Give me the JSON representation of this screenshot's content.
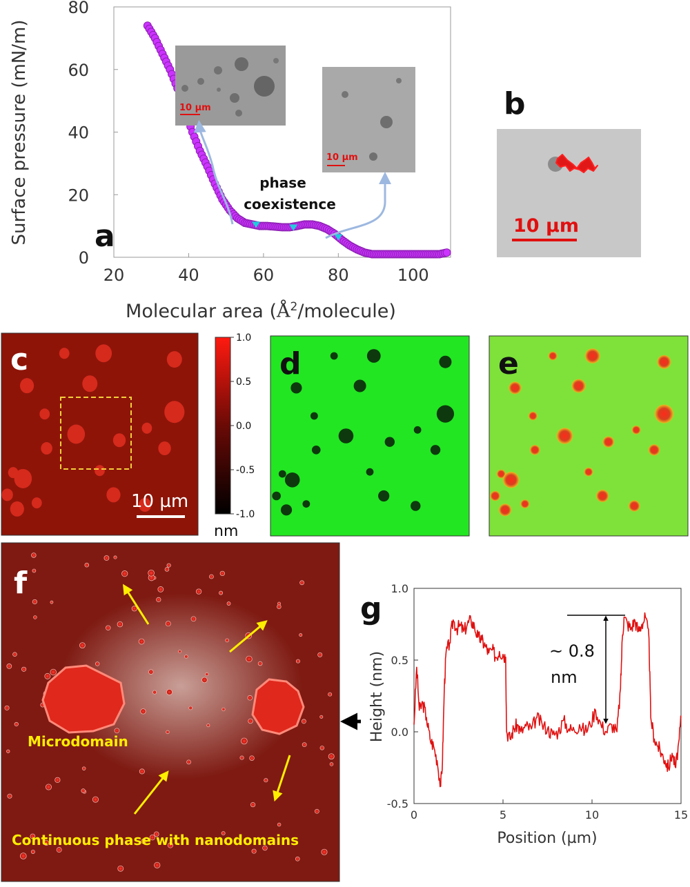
{
  "colors": {
    "isotherm_marker": "#cc33ff",
    "isotherm_edge": "#8a1fb0",
    "transition_marker": "#22ccdd",
    "arrow_blue": "#9db8e0",
    "afm_red": "#c81a10",
    "green": "#22e622",
    "label_yellow": "#ffee00",
    "profile_red": "#e01010"
  },
  "panels": {
    "a": {
      "letter": "a",
      "annotation_line1": "phase",
      "annotation_line2": "coexistence",
      "inset1_scale": "10 µm",
      "inset2_scale": "10 µm"
    },
    "b": {
      "letter": "b",
      "scale": "10 µm"
    },
    "c": {
      "letter": "c",
      "scale": "10 µm"
    },
    "colorbar": {
      "ticks": [
        "1.0",
        "0.5",
        "0.0",
        "-0.5",
        "-1.0"
      ],
      "unit": "nm"
    },
    "d": {
      "letter": "d"
    },
    "e": {
      "letter": "e"
    },
    "f": {
      "letter": "f",
      "label_micro": "Microdomain",
      "label_continuous": "Continuous phase with nanodomains"
    },
    "g": {
      "letter": "g",
      "annot_line1": "~ 0.8",
      "annot_line2": "nm"
    }
  },
  "chart_data": [
    {
      "id": "isotherm",
      "type": "scatter",
      "xlabel_prefix": "Molecular area (",
      "xlabel_unit": "Å",
      "xlabel_sup": "2",
      "xlabel_suffix": "/molecule)",
      "ylabel": "Surface pressure (mN/m)",
      "xlim": [
        20,
        110
      ],
      "ylim": [
        0,
        80
      ],
      "xticks": [
        20,
        40,
        60,
        80,
        100
      ],
      "yticks": [
        0,
        20,
        40,
        60,
        80
      ],
      "grid": false,
      "x": [
        29,
        31,
        33,
        35,
        37,
        39,
        41,
        43,
        45,
        47,
        49,
        51,
        53,
        55,
        57,
        59,
        61,
        63,
        65,
        67,
        69,
        71,
        73,
        75,
        77,
        79,
        81,
        83,
        85,
        87,
        89,
        91,
        93,
        95,
        97,
        99,
        101,
        103,
        105,
        107,
        109
      ],
      "y": [
        74,
        70,
        65,
        60,
        54,
        47,
        40,
        34,
        29,
        23.5,
        18.5,
        15,
        12.5,
        11,
        10.5,
        10,
        10,
        9.8,
        9.6,
        9.6,
        10,
        10.5,
        10.5,
        10,
        9,
        7.5,
        5.5,
        3.8,
        2.5,
        1.5,
        1,
        1,
        1,
        1,
        1,
        1,
        1,
        1,
        1,
        1,
        1.5
      ],
      "transition_points": [
        [
          58,
          10.5
        ],
        [
          68,
          9.6
        ],
        [
          80,
          6.5
        ]
      ]
    },
    {
      "id": "height-profile",
      "type": "line",
      "xlabel": "Position (µm)",
      "ylabel": "Height (nm)",
      "xlim": [
        0,
        15
      ],
      "ylim": [
        -0.5,
        1.0
      ],
      "xticks": [
        0,
        5,
        10,
        15
      ],
      "yticks": [
        -0.5,
        0.0,
        0.5,
        1.0
      ],
      "ytick_labels": [
        "-0.5",
        "0.0",
        "0.5",
        "1.0"
      ],
      "grid": false,
      "x": [
        0,
        0.15,
        0.3,
        0.5,
        0.7,
        0.9,
        1.1,
        1.3,
        1.5,
        1.6,
        1.7,
        1.8,
        2.0,
        2.2,
        2.4,
        2.6,
        2.8,
        3.0,
        3.2,
        3.4,
        3.6,
        3.8,
        4.0,
        4.2,
        4.4,
        4.6,
        4.8,
        5.0,
        5.15,
        5.2,
        5.4,
        5.6,
        5.8,
        6.0,
        6.3,
        6.6,
        6.9,
        7.2,
        7.5,
        7.8,
        8.1,
        8.4,
        8.7,
        9.0,
        9.3,
        9.6,
        9.9,
        10.2,
        10.5,
        10.8,
        11.1,
        11.4,
        11.6,
        11.7,
        11.8,
        12.0,
        12.2,
        12.4,
        12.6,
        12.8,
        13.0,
        13.2,
        13.3,
        13.5,
        13.7,
        13.9,
        14.1,
        14.3,
        14.5,
        14.7,
        14.9,
        15.0
      ],
      "y": [
        0.05,
        0.45,
        0.15,
        0.2,
        0.1,
        -0.05,
        -0.1,
        -0.2,
        -0.38,
        -0.2,
        0.3,
        0.55,
        0.62,
        0.78,
        0.72,
        0.74,
        0.7,
        0.75,
        0.78,
        0.73,
        0.66,
        0.64,
        0.6,
        0.55,
        0.57,
        0.52,
        0.56,
        0.54,
        0.52,
        0.0,
        -0.05,
        0.02,
        0.05,
        0.0,
        0.04,
        0.02,
        0.1,
        0.05,
        0.02,
        -0.02,
        0.0,
        0.08,
        0.02,
        0.01,
        0.05,
        0.0,
        0.05,
        0.15,
        0.05,
        0.0,
        0.05,
        0.0,
        0.3,
        0.65,
        0.8,
        0.75,
        0.72,
        0.78,
        0.7,
        0.75,
        0.8,
        0.65,
        0.1,
        -0.05,
        -0.1,
        -0.15,
        -0.2,
        -0.25,
        -0.15,
        -0.25,
        -0.05,
        0.1
      ]
    }
  ]
}
